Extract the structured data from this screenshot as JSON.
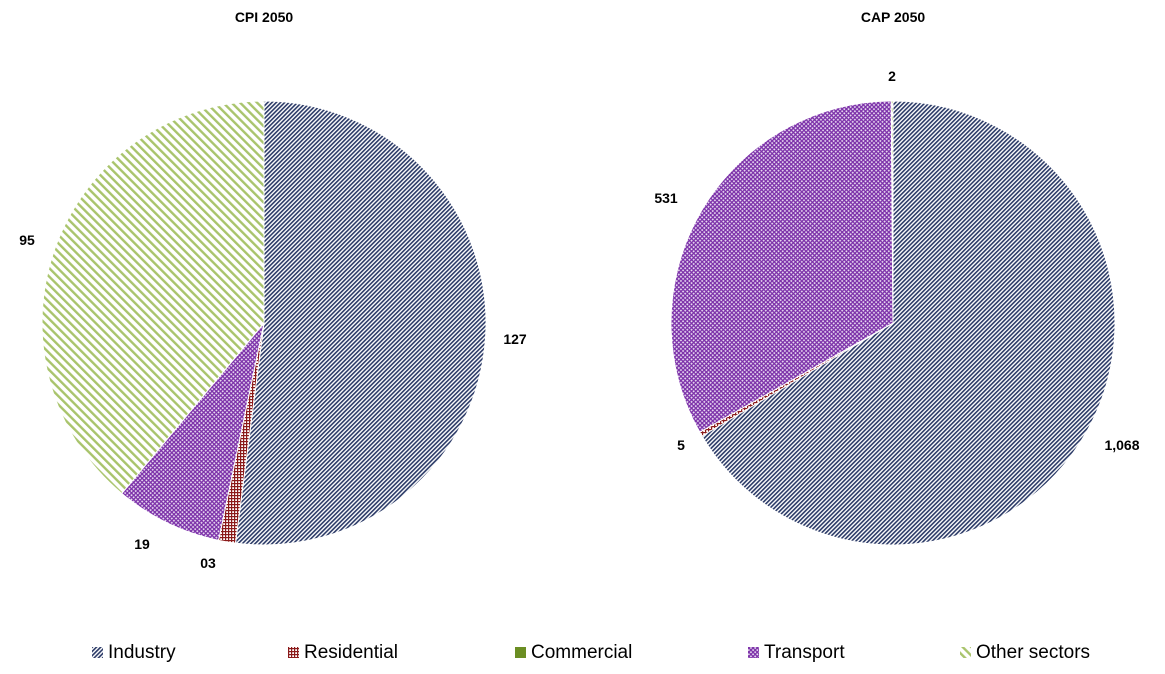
{
  "chart_data": [
    {
      "type": "pie",
      "title": "CPI 2050",
      "categories": [
        "Industry",
        "Residential",
        "Commercial",
        "Transport",
        "Other sectors"
      ],
      "values": [
        127,
        3,
        0,
        19,
        95
      ],
      "data_labels": [
        "127",
        "03",
        "",
        "19",
        "95"
      ]
    },
    {
      "type": "pie",
      "title": "CAP 2050",
      "categories": [
        "Industry",
        "Residential",
        "Commercial",
        "Transport",
        "Other sectors"
      ],
      "values": [
        1068,
        5,
        0,
        531,
        2
      ],
      "data_labels": [
        "1,068",
        "5",
        "",
        "531",
        "2"
      ]
    }
  ],
  "legend": {
    "placement": "bottom",
    "items": [
      {
        "label": "Industry",
        "color": "#2b3a67",
        "pattern": "diagonal-dense"
      },
      {
        "label": "Residential",
        "color": "#8b1a1a",
        "pattern": "grid"
      },
      {
        "label": "Commercial",
        "color": "#6b8e23",
        "pattern": "solid"
      },
      {
        "label": "Transport",
        "color": "#7b2fa8",
        "pattern": "crosshatch"
      },
      {
        "label": "Other sectors",
        "color": "#a9c46c",
        "pattern": "diagonal-light"
      }
    ]
  }
}
